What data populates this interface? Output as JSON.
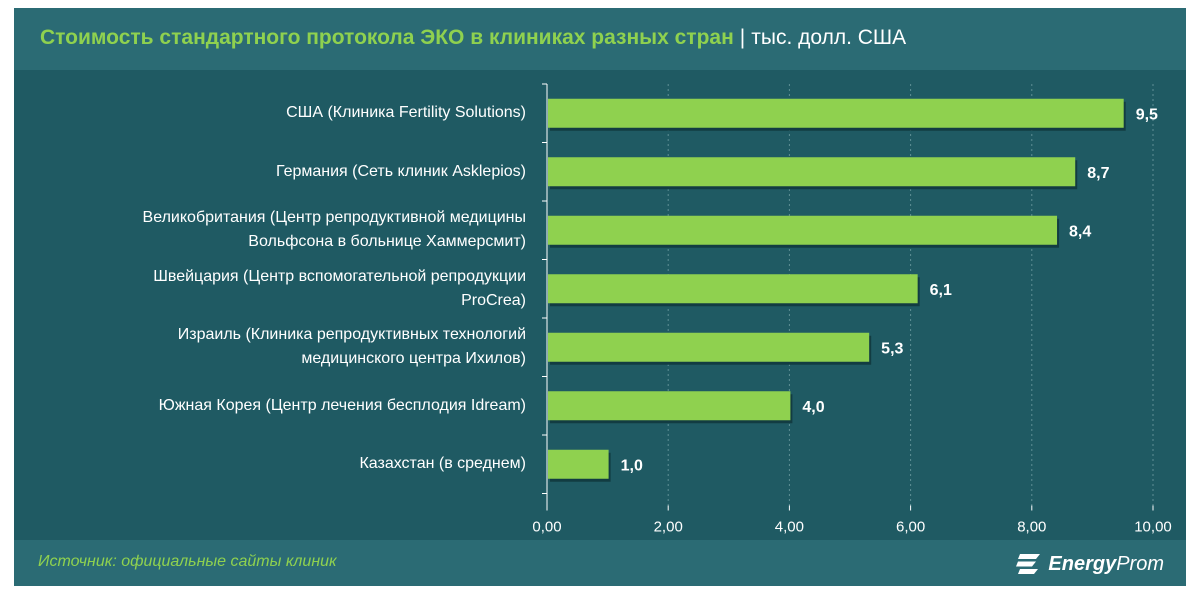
{
  "header": {
    "title": "Стоимость стандартного протокола ЭКО в клиниках разных стран",
    "separator": "|",
    "unit": "тыс. долл. США"
  },
  "footer": {
    "source": "Источник: официальные сайты клиник",
    "logo_part1": "Energy",
    "logo_part2": "Prom",
    "logo_icon": "energyprom-logo-icon"
  },
  "colors": {
    "background": "#1f5a63",
    "header_bg": "#2b6b74",
    "bar": "#8fd14f",
    "title_accent": "#8fd14f",
    "text": "#ffffff"
  },
  "chart_data": {
    "type": "bar",
    "orientation": "horizontal",
    "title": "Стоимость стандартного протокола ЭКО в клиниках разных стран",
    "categories": [
      [
        "США (Клиника Fertility Solutions)"
      ],
      [
        "Германия (Сеть клиник Asklepios)"
      ],
      [
        "Великобритания (Центр репродуктивной медицины",
        "Вольфсона в больнице Хаммерсмит)"
      ],
      [
        "Швейцария (Центр вспомогательной репродукции",
        "ProCrea)"
      ],
      [
        "Израиль (Клиника репродуктивных технологий",
        "медицинского центра Ихилов)"
      ],
      [
        "Южная Корея (Центр лечения бесплодия Idream)"
      ],
      [
        "Казахстан (в среднем)"
      ]
    ],
    "values": [
      9.5,
      8.7,
      8.4,
      6.1,
      5.3,
      4.0,
      1.0
    ],
    "value_labels": [
      "9,5",
      "8,7",
      "8,4",
      "6,1",
      "5,3",
      "4,0",
      "1,0"
    ],
    "xlim": [
      0,
      10
    ],
    "x_ticks": [
      0,
      2,
      4,
      6,
      8,
      10
    ],
    "x_tick_labels": [
      "0,00",
      "2,00",
      "4,00",
      "6,00",
      "8,00",
      "10,00"
    ],
    "grid": "vertical dashed"
  }
}
